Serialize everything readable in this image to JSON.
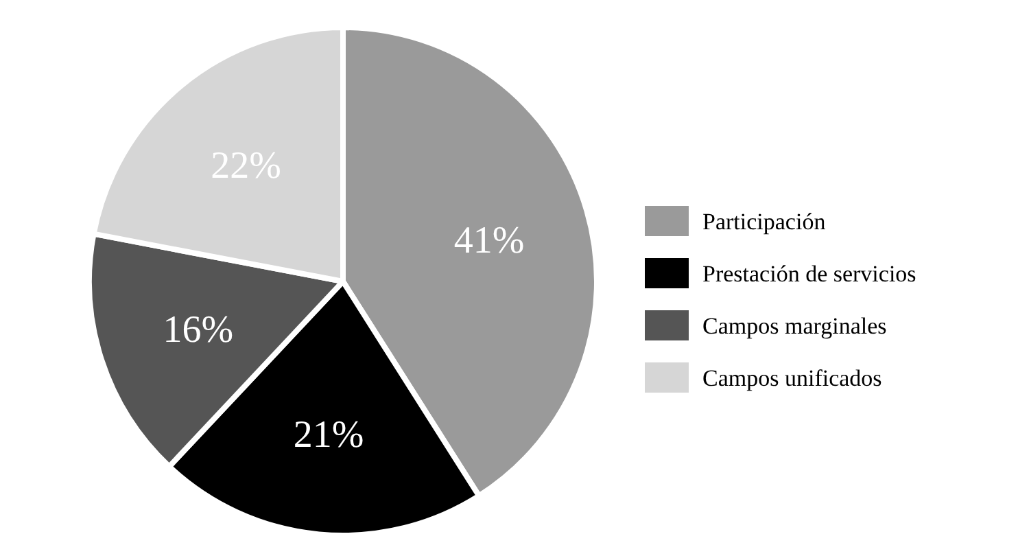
{
  "chart_data": {
    "type": "pie",
    "categories": [
      "Participación",
      "Prestación de servicios",
      "Campos marginales",
      "Campos unificados"
    ],
    "values": [
      41,
      21,
      16,
      22
    ],
    "colors": [
      "#9a9a9a",
      "#000000",
      "#555555",
      "#d6d6d6"
    ],
    "value_labels": [
      "41%",
      "21%",
      "16%",
      "22%"
    ],
    "legend": "right"
  }
}
